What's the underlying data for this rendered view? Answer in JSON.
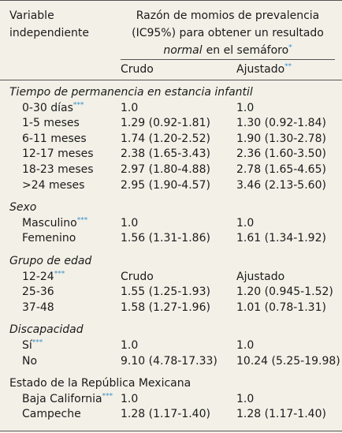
{
  "header": {
    "variable_lines": [
      "Variable",
      "independiente"
    ],
    "measure_lines": [
      "Razón de momios de prevalencia",
      "(IC95%) para obtener un resultado"
    ],
    "measure_italic": "normal",
    "measure_tail": "en el semáforo",
    "measure_note": "*",
    "columns": [
      {
        "label": "Crudo"
      },
      {
        "label": "Ajustado",
        "note": "**"
      }
    ]
  },
  "sections": [
    {
      "title": "Tiempo de permanencia en estancia infantil",
      "italic": true,
      "rows": [
        {
          "label": "0-30 días",
          "note": "***",
          "crudo": "1.0",
          "ajustado": "1.0"
        },
        {
          "label": "1-5 meses",
          "crudo": "1.29 (0.92-1.81)",
          "ajustado": "1.30 (0.92-1.84)"
        },
        {
          "label": "6-11 meses",
          "crudo": "1.74 (1.20-2.52)",
          "ajustado": "1.90 (1.30-2.78)"
        },
        {
          "label": "12-17 meses",
          "crudo": "2.38 (1.65-3.43)",
          "ajustado": "2.36 (1.60-3.50)"
        },
        {
          "label": "18-23 meses",
          "crudo": "2.97 (1.80-4.88)",
          "ajustado": "2.78 (1.65-4.65)"
        },
        {
          "label": ">24 meses",
          "crudo": "2.95 (1.90-4.57)",
          "ajustado": "3.46 (2.13-5.60)"
        }
      ]
    },
    {
      "title": "Sexo",
      "italic": true,
      "rows": [
        {
          "label": "Masculino",
          "note": "***",
          "crudo": "1.0",
          "ajustado": "1.0"
        },
        {
          "label": "Femenino",
          "crudo": "1.56 (1.31-1.86)",
          "ajustado": "1.61 (1.34-1.92)"
        }
      ]
    },
    {
      "title": "Grupo de edad",
      "italic": true,
      "rows": [
        {
          "label": "12-24",
          "note": "***",
          "crudo": "Crudo",
          "ajustado": "Ajustado"
        },
        {
          "label": "25-36",
          "crudo": "1.55 (1.25-1.93)",
          "ajustado": "1.20 (0.945-1.52)"
        },
        {
          "label": "37-48",
          "crudo": "1.58 (1.27-1.96)",
          "ajustado": "1.01 (0.78-1.31)"
        }
      ]
    },
    {
      "title": "Discapacidad",
      "italic": true,
      "rows": [
        {
          "label": "Sí",
          "note": "***",
          "crudo": "1.0",
          "ajustado": "1.0"
        },
        {
          "label": "No",
          "crudo": "9.10 (4.78-17.33)",
          "ajustado": "10.24 (5.25-19.98)"
        }
      ]
    },
    {
      "title": "Estado de la República Mexicana",
      "italic": false,
      "rows": [
        {
          "label": "Baja California",
          "note": "***",
          "crudo": "1.0",
          "ajustado": "1.0"
        },
        {
          "label": "Campeche",
          "crudo": "1.28 (1.17-1.40)",
          "ajustado": "1.28 (1.17-1.40)"
        }
      ]
    }
  ]
}
